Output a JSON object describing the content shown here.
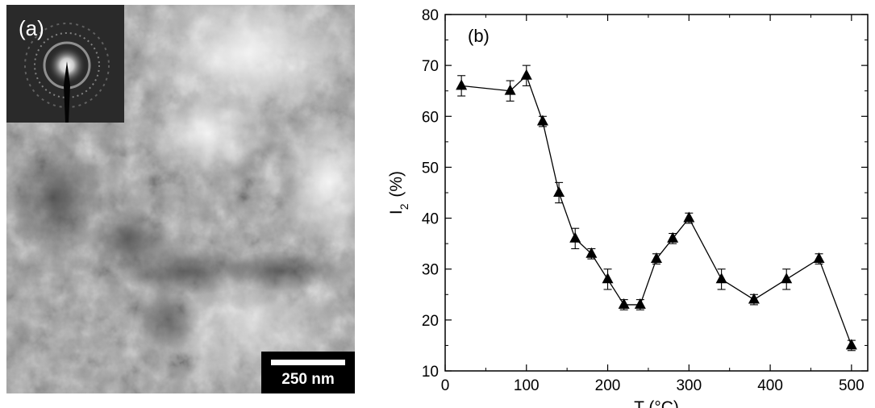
{
  "panel_a": {
    "label": "(a)",
    "scale_bar": "250 nm"
  },
  "chart_data": {
    "type": "line",
    "panel_label": "(b)",
    "xlabel": "T (°C)",
    "ylabel": "I2 (%)",
    "xlim": [
      0,
      520
    ],
    "ylim": [
      10,
      80
    ],
    "xticks": [
      0,
      100,
      200,
      300,
      400,
      500
    ],
    "yticks": [
      10,
      20,
      30,
      40,
      50,
      60,
      70,
      80
    ],
    "marker": "triangle",
    "grid": false,
    "series": [
      {
        "x": [
          20,
          80,
          100,
          120,
          140,
          160,
          180,
          200,
          220,
          240,
          260,
          280,
          300,
          340,
          380,
          420,
          460,
          500
        ],
        "y": [
          66,
          65,
          68,
          59,
          45,
          36,
          33,
          28,
          23,
          23,
          32,
          36,
          40,
          28,
          24,
          28,
          32,
          15
        ],
        "error": [
          2,
          2,
          2,
          1,
          2,
          2,
          1,
          2,
          1,
          1,
          1,
          1,
          1,
          2,
          1,
          2,
          1,
          1
        ]
      }
    ]
  }
}
